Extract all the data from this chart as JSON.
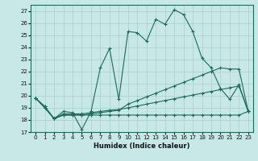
{
  "xlabel": "Humidex (Indice chaleur)",
  "xlim": [
    -0.5,
    23.5
  ],
  "ylim": [
    17,
    27.5
  ],
  "yticks": [
    17,
    18,
    19,
    20,
    21,
    22,
    23,
    24,
    25,
    26,
    27
  ],
  "xticks": [
    0,
    1,
    2,
    3,
    4,
    5,
    6,
    7,
    8,
    9,
    10,
    11,
    12,
    13,
    14,
    15,
    16,
    17,
    18,
    19,
    20,
    21,
    22,
    23
  ],
  "background_color": "#c8e8e8",
  "grid_color": "#a8cccc",
  "line_color": "#1a6b5a",
  "line1": [
    19.8,
    19.1,
    18.1,
    18.7,
    18.6,
    17.2,
    18.7,
    22.3,
    23.9,
    19.7,
    25.3,
    25.2,
    24.5,
    26.3,
    25.9,
    27.1,
    26.7,
    25.3,
    23.1,
    22.3,
    20.6,
    19.7,
    20.9,
    18.7
  ],
  "line2": [
    19.8,
    19.1,
    18.1,
    18.5,
    18.5,
    18.5,
    18.6,
    18.7,
    18.8,
    18.85,
    19.0,
    19.15,
    19.3,
    19.45,
    19.6,
    19.75,
    19.9,
    20.05,
    20.2,
    20.35,
    20.5,
    20.65,
    20.8,
    18.7
  ],
  "line3": [
    19.8,
    19.0,
    18.1,
    18.4,
    18.4,
    18.4,
    18.5,
    18.6,
    18.7,
    18.8,
    19.3,
    19.6,
    19.9,
    20.2,
    20.5,
    20.8,
    21.1,
    21.4,
    21.7,
    22.0,
    22.3,
    22.2,
    22.2,
    18.7
  ],
  "line4": [
    19.8,
    19.0,
    18.1,
    18.4,
    18.4,
    18.4,
    18.4,
    18.4,
    18.4,
    18.4,
    18.4,
    18.4,
    18.4,
    18.4,
    18.4,
    18.4,
    18.4,
    18.4,
    18.4,
    18.4,
    18.4,
    18.4,
    18.4,
    18.7
  ]
}
